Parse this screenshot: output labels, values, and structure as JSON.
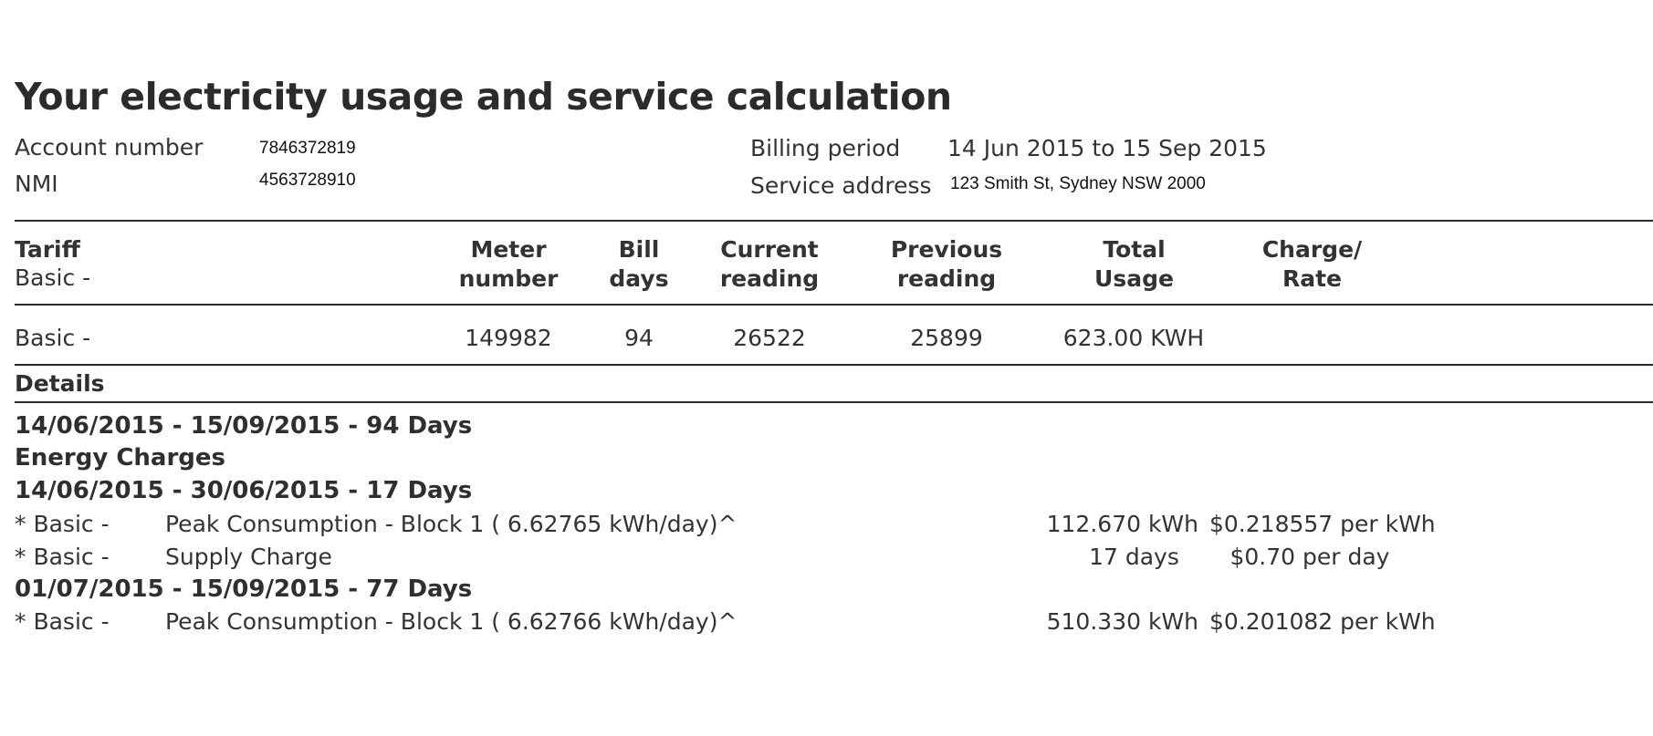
{
  "title": "Your electricity usage and service calculation",
  "account": {
    "account_number_label": "Account number",
    "account_number": "7846372819",
    "nmi_label": "NMI",
    "nmi": "4563728910",
    "billing_period_label": "Billing period",
    "billing_period": "14 Jun 2015 to 15 Sep 2015",
    "service_address_label": "Service address",
    "service_address": "123 Smith St, Sydney NSW 2000"
  },
  "table": {
    "headers": {
      "tariff": "Tariff",
      "tariff_sub": "Basic -",
      "meter_1": "Meter",
      "meter_2": "number",
      "bill_1": "Bill",
      "bill_2": "days",
      "current_1": "Current",
      "current_2": "reading",
      "previous_1": "Previous",
      "previous_2": "reading",
      "total_1": "Total",
      "total_2": "Usage",
      "charge_1": "Charge/",
      "charge_2": "Rate"
    },
    "row": {
      "tariff": "Basic -",
      "meter_number": "149982",
      "bill_days": "94",
      "current_reading": "26522",
      "previous_reading": "25899",
      "total_usage": "623.00 KWH"
    }
  },
  "details": {
    "heading": "Details",
    "period_heading": "14/06/2015 - 15/09/2015 - 94 Days",
    "energy_heading": "Energy Charges",
    "sub1_heading": "14/06/2015 - 30/06/2015 - 17 Days",
    "sub1_lines": [
      {
        "tariff": "* Basic -",
        "desc": "Peak Consumption - Block 1 (  6.62765  kWh/day)^",
        "qty": "112.670 kWh",
        "rate": "$0.218557 per kWh"
      },
      {
        "tariff": "* Basic -",
        "desc": "Supply Charge",
        "qty": "17 days",
        "rate": "$0.70 per day"
      }
    ],
    "sub2_heading": "01/07/2015 - 15/09/2015 - 77 Days",
    "sub2_lines": [
      {
        "tariff": "* Basic -",
        "desc": "Peak Consumption - Block 1 (  6.62766  kWh/day)^",
        "qty": "510.330 kWh",
        "rate": "$0.201082 per kWh"
      }
    ]
  }
}
